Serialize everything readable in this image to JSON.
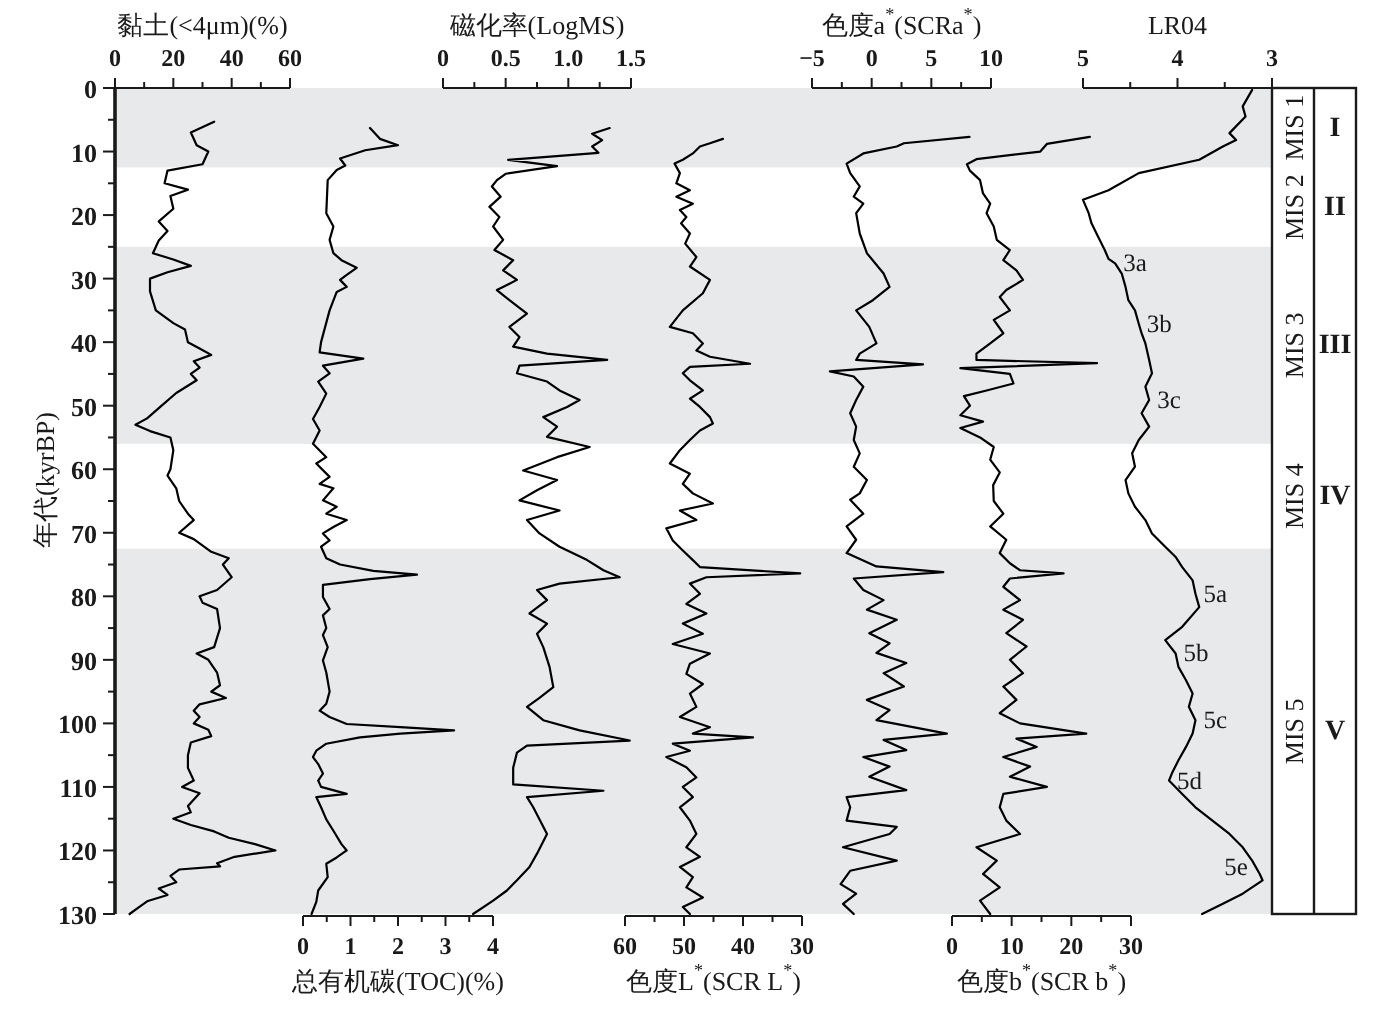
{
  "chart_data": [
    {
      "type": "line",
      "xlabel": "黏土(<4μm)(%)",
      "xlim": [
        0,
        60
      ],
      "xticks": [
        0,
        {
          "value": 10,
          "label": null
        },
        20,
        {
          "value": 30,
          "label": null
        },
        40,
        {
          "value": 50,
          "label": null
        },
        60
      ],
      "ylabel": "年代(kyrBP)",
      "ylim": [
        130,
        0
      ],
      "yticks": [
        0,
        {
          "value": 5,
          "label": null
        },
        10,
        {
          "value": 15,
          "label": null
        },
        20,
        {
          "value": 25,
          "label": null
        },
        30,
        {
          "value": 35,
          "label": null
        },
        40,
        {
          "value": 45,
          "label": null
        },
        50,
        {
          "value": 55,
          "label": null
        },
        60,
        {
          "value": 65,
          "label": null
        },
        70,
        {
          "value": 75,
          "label": null
        },
        80,
        {
          "value": 85,
          "label": null
        },
        90,
        {
          "value": 95,
          "label": null
        },
        100,
        {
          "value": 105,
          "label": null
        },
        110,
        {
          "value": 115,
          "label": null
        },
        120,
        {
          "value": 125,
          "label": null
        },
        130
      ],
      "color": "#000000",
      "x": [
        34,
        26,
        28,
        32,
        30,
        18,
        17,
        25,
        19,
        20,
        15,
        18,
        15,
        13,
        20,
        26,
        18,
        12,
        12,
        14,
        20,
        24,
        25,
        29,
        33,
        27,
        29,
        26,
        28,
        21,
        16,
        11,
        7,
        12,
        19,
        20,
        19,
        18,
        21,
        22,
        25,
        27,
        22,
        27,
        33,
        39,
        37,
        40,
        35,
        29,
        30,
        35,
        36,
        34,
        28,
        32,
        35,
        36,
        33,
        38,
        29,
        27,
        29,
        27,
        32,
        33,
        26,
        25,
        25,
        27,
        23,
        29,
        25,
        26,
        20,
        26,
        34,
        39,
        48,
        55,
        41,
        35,
        36,
        22,
        19,
        21,
        15,
        18,
        11,
        8,
        5
      ],
      "values": [
        5.3,
        7,
        9,
        10,
        12,
        13,
        15,
        16,
        17,
        19,
        21,
        22.5,
        24,
        26,
        27,
        28,
        29,
        30,
        32,
        35,
        37,
        38,
        40,
        41,
        42,
        43,
        44,
        45,
        46,
        48,
        50,
        52,
        53,
        54,
        55,
        57,
        60,
        61,
        63,
        65,
        67,
        68,
        70,
        71,
        73,
        74,
        75,
        77,
        79,
        80,
        81,
        82,
        85,
        88,
        89,
        90,
        92,
        94,
        95,
        96,
        97,
        98,
        99,
        100,
        101,
        102,
        103,
        105,
        107,
        109,
        110,
        111,
        113,
        114,
        115,
        116,
        117,
        118,
        119,
        120,
        121,
        122,
        122.5,
        123,
        124,
        125,
        126,
        127,
        128,
        129,
        130
      ],
      "bands": [
        {
          "axis": "y",
          "from": 0,
          "to": 12.5,
          "color": "#e7e9ea"
        },
        {
          "axis": "y",
          "from": 25,
          "to": 56,
          "color": "#e7e9ea"
        },
        {
          "axis": "y",
          "from": 72.5,
          "to": 130,
          "color": "#e7e9ea"
        }
      ],
      "annotations": [
        "MIS 1",
        "MIS 2",
        "MIS 3",
        "MIS 4",
        "MIS 5",
        "I",
        "II",
        "III",
        "IV",
        "V"
      ]
    },
    {
      "type": "line",
      "xlabel": "总有机碳(TOC)(%)",
      "xlim": [
        0,
        4
      ],
      "xticks": [
        0,
        {
          "value": 0.5,
          "label": null
        },
        1,
        {
          "value": 1.5,
          "label": null
        },
        2,
        {
          "value": 2.5,
          "label": null
        },
        3,
        {
          "value": 3.5,
          "label": null
        },
        4
      ],
      "ylim": [
        130,
        0
      ],
      "tick_labels": "x",
      "color": "#000000",
      "x": [
        1.41,
        1.62,
        2.0,
        1.31,
        0.78,
        0.89,
        0.71,
        0.52,
        0.49,
        0.64,
        0.56,
        0.64,
        0.81,
        1.13,
        0.92,
        0.78,
        0.92,
        0.71,
        0.56,
        0.38,
        0.35,
        1.27,
        0.42,
        0.56,
        0.32,
        0.49,
        0.35,
        0.21,
        0.35,
        0.21,
        0.49,
        0.28,
        0.56,
        0.35,
        0.64,
        0.42,
        0.71,
        0.49,
        0.92,
        0.64,
        0.42,
        0.56,
        0.38,
        0.49,
        0.78,
        1.48,
        2.4,
        1.41,
        0.42,
        0.42,
        0.56,
        0.42,
        0.49,
        0.42,
        0.52,
        0.42,
        0.49,
        0.56,
        0.49,
        0.35,
        0.56,
        0.92,
        2.05,
        3.18,
        2.05,
        1.2,
        0.49,
        0.28,
        0.21,
        0.32,
        0.42,
        0.32,
        0.38,
        0.92,
        0.28,
        0.38,
        0.49,
        0.64,
        0.81,
        0.92,
        0.71,
        0.49,
        0.52,
        0.32,
        0.28,
        0.18
      ],
      "values": [
        6.3,
        8,
        9,
        9.8,
        11.1,
        12.2,
        12.9,
        14.5,
        19.7,
        21.8,
        23.9,
        26,
        27.1,
        28.3,
        29.4,
        30.2,
        31.3,
        32.1,
        35,
        40,
        41.6,
        42.6,
        43.7,
        44.9,
        46.2,
        48.1,
        50.2,
        52.1,
        53.9,
        56,
        58.1,
        59.1,
        61.2,
        62.3,
        63,
        64.9,
        65.9,
        67,
        68,
        69.1,
        70.1,
        71.2,
        72.2,
        74,
        75,
        76,
        76.6,
        77.3,
        78.2,
        80.1,
        82,
        83,
        85,
        86.1,
        88,
        90.1,
        92,
        95,
        96.9,
        98,
        99,
        100.1,
        100.6,
        101.1,
        101.6,
        102.2,
        103.2,
        104.3,
        105.3,
        106.4,
        107.9,
        109,
        110,
        111.1,
        111.6,
        113.2,
        115.1,
        116.9,
        119,
        120,
        121.1,
        122.1,
        124.2,
        126.3,
        128.1,
        130
      ]
    },
    {
      "type": "line",
      "xlabel": "磁化率(LogMS)",
      "xlim": [
        0,
        1.5
      ],
      "xticks": [
        0,
        {
          "value": 0.25,
          "label": null
        },
        0.5,
        {
          "value": 0.75,
          "label": null
        },
        {
          "value": 1,
          "label": "1.0"
        },
        {
          "value": 1.25,
          "label": null
        },
        1.5
      ],
      "ylim": [
        130,
        0
      ],
      "tick_labels": "x",
      "color": "#000000",
      "x": [
        1.33,
        1.19,
        1.27,
        1.19,
        1.24,
        0.52,
        0.91,
        0.5,
        0.43,
        0.39,
        0.46,
        0.37,
        0.45,
        0.4,
        0.48,
        0.41,
        0.56,
        0.48,
        0.59,
        0.43,
        0.53,
        0.67,
        0.53,
        0.61,
        0.56,
        0.83,
        1.31,
        0.61,
        0.59,
        0.83,
        0.93,
        1.09,
        0.99,
        0.8,
        0.91,
        0.83,
        1.17,
        0.91,
        0.64,
        0.91,
        0.75,
        0.61,
        0.93,
        0.67,
        0.77,
        0.93,
        1.15,
        1.28,
        1.41,
        0.93,
        0.75,
        0.83,
        0.69,
        0.83,
        0.75,
        0.8,
        0.85,
        0.88,
        0.77,
        0.67,
        0.8,
        1.09,
        1.49,
        0.67,
        0.59,
        0.56,
        0.56,
        1.28,
        0.67,
        0.72,
        0.83,
        0.75,
        0.69,
        0.59,
        0.51,
        0.4,
        0.24
      ],
      "values": [
        6.3,
        7.2,
        8.2,
        9.2,
        10.2,
        11.3,
        12.3,
        13.5,
        14.5,
        15.5,
        17.1,
        18.7,
        20.3,
        21.8,
        23.9,
        25.5,
        27.1,
        28.7,
        30.2,
        31.8,
        33.4,
        35.5,
        37.6,
        39.2,
        40.7,
        41.8,
        42.8,
        43.7,
        44.9,
        46.2,
        47.6,
        49.1,
        50.2,
        51.8,
        53.3,
        54.9,
        56.5,
        58.1,
        60.2,
        61.7,
        63.3,
        64.9,
        66.5,
        68,
        70.1,
        72.2,
        74.3,
        75.9,
        77,
        78,
        79,
        80.6,
        82.7,
        84.3,
        85.9,
        88,
        91.1,
        94.3,
        96,
        97.4,
        99.5,
        101.1,
        102.7,
        103.5,
        104.6,
        107,
        109.6,
        110.6,
        111.6,
        113.2,
        117.4,
        120.5,
        122.6,
        124.7,
        126.3,
        127.9,
        130
      ]
    },
    {
      "type": "line",
      "xlabel": "色度L$^{*}$(SCR L$^{*}$)",
      "xlim": [
        60,
        30
      ],
      "xticks": [
        60,
        {
          "value": 55,
          "label": null
        },
        50,
        {
          "value": 45,
          "label": null
        },
        40,
        {
          "value": 35,
          "label": null
        },
        30
      ],
      "ylim": [
        130,
        0
      ],
      "tick_labels": "x",
      "color": "#000000",
      "x": [
        43.4,
        45.6,
        47.3,
        48.5,
        50.2,
        51.6,
        50.7,
        51.3,
        49.0,
        51.3,
        48.5,
        50.7,
        49.6,
        50.5,
        49.0,
        49.8,
        47.9,
        49.0,
        45.6,
        46.8,
        50.2,
        52.4,
        48.5,
        46.8,
        47.9,
        45.6,
        38.8,
        49.0,
        50.2,
        49.0,
        46.8,
        49.0,
        47.3,
        45.6,
        45.1,
        47.3,
        49.0,
        50.7,
        52.4,
        49.0,
        50.2,
        48.5,
        45.1,
        50.7,
        47.9,
        53.0,
        51.9,
        50.2,
        48.5,
        47.3,
        30.3,
        46.2,
        49.0,
        47.3,
        49.6,
        46.2,
        50.2,
        46.8,
        51.9,
        45.6,
        49.0,
        49.6,
        46.8,
        49.0,
        47.9,
        50.7,
        45.6,
        48.5,
        38.3,
        51.9,
        49.0,
        53.0,
        49.6,
        47.9,
        50.2,
        48.5,
        50.7,
        49.0,
        47.9,
        49.6,
        47.3,
        50.7,
        48.5,
        49.6,
        46.8,
        50.2,
        49.0
      ],
      "values": [
        8.0,
        8.7,
        9.2,
        10.3,
        11.3,
        11.9,
        13.4,
        15.0,
        16.1,
        17.1,
        18.2,
        19.2,
        20.3,
        21.3,
        22.9,
        24.5,
        26.6,
        28.1,
        30.2,
        32.3,
        35.0,
        37.6,
        38.6,
        40.2,
        41.3,
        42.3,
        43.4,
        43.9,
        44.9,
        46.0,
        47.6,
        48.9,
        50.2,
        51.8,
        52.8,
        53.9,
        55.4,
        57.0,
        59.1,
        60.7,
        62.3,
        63.8,
        65.4,
        66.5,
        68.0,
        69.3,
        71.2,
        72.8,
        74.3,
        75.4,
        76.4,
        77.0,
        78.0,
        79.6,
        81.2,
        82.7,
        84.3,
        85.9,
        87.5,
        89.0,
        90.6,
        92.2,
        93.8,
        95.3,
        97.4,
        99.0,
        100.6,
        101.6,
        102.2,
        103.2,
        104.3,
        105.3,
        106.9,
        108.5,
        110.0,
        111.6,
        113.2,
        115.3,
        117.4,
        119.5,
        121.0,
        122.6,
        124.2,
        125.8,
        127.4,
        128.9,
        130.0
      ]
    },
    {
      "type": "line",
      "xlabel": "色度a$^{*}$(SCRa$^{*}$)",
      "xlim": [
        -5,
        10
      ],
      "xticks": [
        {
          "value": -5,
          "label": "−5"
        },
        {
          "value": -2.5,
          "label": null
        },
        0,
        {
          "value": 2.5,
          "label": null
        },
        5,
        {
          "value": 7.5,
          "label": null
        },
        10
      ],
      "ylim": [
        130,
        0
      ],
      "tick_labels": "x",
      "color": "#000000",
      "x": [
        8.2,
        2.7,
        2.1,
        -0.7,
        -2.1,
        -1.8,
        -1.0,
        -1.5,
        -0.7,
        -1.3,
        -1.0,
        -0.4,
        1.0,
        1.5,
        0.1,
        -1.3,
        -0.2,
        0.4,
        -1.0,
        -1.3,
        4.3,
        -3.5,
        -1.5,
        -0.7,
        -1.3,
        -1.8,
        -1.3,
        -1.5,
        -1.0,
        -1.5,
        -0.4,
        -1.0,
        -1.8,
        -0.7,
        -2.1,
        -1.3,
        -2.1,
        0.4,
        6.0,
        -1.5,
        -0.7,
        1.0,
        -0.4,
        2.1,
        -0.2,
        1.5,
        0.4,
        2.9,
        1.0,
        2.7,
        -0.4,
        1.5,
        0.4,
        6.3,
        1.0,
        2.9,
        -0.7,
        1.5,
        -0.2,
        2.9,
        -2.1,
        -1.8,
        -2.1,
        2.1,
        1.5,
        -2.4,
        2.1,
        -1.8,
        -2.6,
        -1.3,
        -2.4,
        -1.5
      ],
      "values": [
        7.7,
        8.7,
        9.2,
        10.3,
        11.9,
        13.4,
        15.5,
        17.1,
        18.2,
        19.7,
        22.9,
        26.0,
        29.2,
        31.3,
        33.4,
        35.0,
        37.6,
        40.2,
        41.8,
        42.8,
        43.5,
        44.6,
        45.4,
        47.0,
        49.1,
        51.2,
        53.3,
        55.4,
        57.5,
        59.6,
        61.7,
        63.8,
        64.8,
        67.0,
        69.0,
        71.1,
        73.2,
        75.3,
        76.2,
        77.2,
        79.0,
        80.6,
        82.1,
        83.7,
        85.8,
        87.4,
        88.9,
        90.5,
        92.1,
        94.2,
        96.3,
        97.9,
        99.5,
        101.6,
        102.6,
        104.2,
        105.3,
        106.8,
        108.4,
        110.5,
        111.6,
        113.2,
        115.3,
        116.3,
        117.4,
        119.5,
        121.6,
        123.2,
        125.3,
        126.8,
        128.4,
        130.0
      ]
    },
    {
      "type": "line",
      "xlabel": "色度b$^{*}$(SCR b$^{*}$)",
      "xlim": [
        0,
        30
      ],
      "xticks": [
        0,
        {
          "value": 5,
          "label": null
        },
        10,
        {
          "value": 15,
          "label": null
        },
        20,
        {
          "value": 25,
          "label": null
        },
        30
      ],
      "ylim": [
        130,
        0
      ],
      "tick_labels": "x",
      "color": "#000000",
      "x": [
        23.1,
        15.9,
        14.8,
        4.1,
        2.5,
        3.0,
        4.7,
        5.2,
        6.4,
        5.8,
        7.0,
        7.5,
        9.7,
        8.6,
        10.8,
        11.9,
        9.1,
        8.0,
        9.7,
        7.0,
        8.6,
        6.4,
        4.1,
        4.1,
        24.3,
        1.4,
        9.7,
        10.3,
        5.8,
        2.0,
        3.0,
        1.4,
        5.2,
        1.4,
        4.7,
        7.0,
        6.4,
        8.0,
        6.9,
        7.0,
        8.6,
        6.4,
        9.1,
        8.0,
        9.7,
        11.4,
        18.7,
        9.7,
        8.6,
        11.4,
        8.6,
        11.9,
        9.1,
        12.5,
        9.7,
        11.9,
        8.6,
        10.8,
        8.0,
        11.4,
        22.5,
        10.8,
        14.2,
        8.6,
        13.1,
        9.7,
        15.9,
        8.6,
        8.0,
        9.1,
        11.4,
        4.1,
        7.5,
        5.2,
        8.0,
        4.7,
        6.4
      ],
      "values": [
        7.7,
        8.8,
        10.0,
        11.2,
        12.0,
        13.0,
        14.5,
        16.6,
        18.2,
        19.7,
        21.8,
        23.9,
        25.5,
        27.1,
        28.7,
        30.2,
        31.8,
        32.9,
        35.0,
        36.5,
        38.6,
        40.2,
        41.8,
        42.8,
        43.3,
        44.1,
        45.0,
        46.5,
        47.6,
        48.5,
        50.0,
        51.5,
        52.5,
        53.5,
        55.0,
        56.5,
        58.5,
        60.5,
        62.5,
        65.0,
        67.0,
        69.0,
        71.1,
        73.2,
        74.8,
        75.9,
        76.4,
        77.2,
        78.5,
        80.6,
        82.1,
        83.7,
        85.8,
        87.9,
        90.0,
        92.1,
        94.2,
        96.3,
        98.4,
        100.0,
        101.6,
        102.4,
        103.7,
        105.3,
        106.8,
        108.4,
        110.0,
        111.1,
        113.2,
        115.3,
        117.4,
        119.5,
        121.6,
        123.7,
        125.8,
        127.9,
        130.0
      ]
    },
    {
      "type": "line",
      "xlabel": "LR04",
      "xlim": [
        5,
        3
      ],
      "xticks": [
        5,
        {
          "value": 4.5,
          "label": null
        },
        4,
        {
          "value": 3.5,
          "label": null
        },
        3
      ],
      "ylim": [
        130,
        0
      ],
      "tick_labels": "x",
      "color": "#000000",
      "x": [
        3.21,
        3.31,
        3.28,
        3.45,
        3.38,
        3.52,
        3.77,
        4.41,
        4.73,
        5.0,
        4.94,
        4.91,
        4.84,
        4.77,
        4.73,
        4.66,
        4.59,
        4.55,
        4.52,
        4.45,
        4.41,
        4.38,
        4.34,
        4.3,
        4.27,
        4.34,
        4.3,
        4.38,
        4.3,
        4.41,
        4.48,
        4.45,
        4.55,
        4.52,
        4.45,
        4.34,
        4.27,
        4.13,
        4.02,
        3.95,
        3.84,
        3.81,
        3.77,
        3.95,
        4.13,
        4.02,
        3.99,
        3.91,
        3.84,
        3.88,
        3.81,
        3.84,
        3.91,
        3.99,
        4.06,
        4.09,
        3.95,
        3.81,
        3.63,
        3.45,
        3.31,
        3.21,
        3.13,
        3.1,
        3.31,
        3.52,
        3.74
      ],
      "values": [
        0.3,
        2.9,
        4.5,
        7.1,
        8.2,
        9.2,
        11.3,
        13.4,
        16.1,
        17.6,
        19.7,
        21.3,
        23.4,
        25.5,
        26.9,
        27.6,
        29.2,
        31.3,
        33.4,
        35,
        37.1,
        38.6,
        40.2,
        42.8,
        44.9,
        47,
        49.1,
        51.2,
        53.3,
        55.4,
        57.5,
        59.6,
        61.7,
        63.8,
        65.9,
        68,
        70.1,
        72.2,
        73.8,
        75.4,
        77.5,
        79.6,
        81.7,
        84.8,
        86.9,
        89,
        91.1,
        93.2,
        95.3,
        97.4,
        99.5,
        101.6,
        103.7,
        105.8,
        107.9,
        109,
        111.1,
        113.2,
        115.3,
        117.4,
        119.5,
        121.6,
        123.7,
        124.7,
        126.8,
        128.4,
        130
      ],
      "annotations": [
        {
          "text": "3a",
          "x": 4.66,
          "y": 27.6
        },
        {
          "text": "3b",
          "x": 4.41,
          "y": 37.1
        },
        {
          "text": "3c",
          "x": 4.3,
          "y": 49.1
        },
        {
          "text": "5a",
          "x": 3.81,
          "y": 79.6
        },
        {
          "text": "5b",
          "x": 4.02,
          "y": 89
        },
        {
          "text": "5c",
          "x": 3.81,
          "y": 99.5
        },
        {
          "text": "5d",
          "x": 4.09,
          "y": 109
        },
        {
          "text": "5e",
          "x": 3.17,
          "y": 122.6
        }
      ]
    }
  ]
}
